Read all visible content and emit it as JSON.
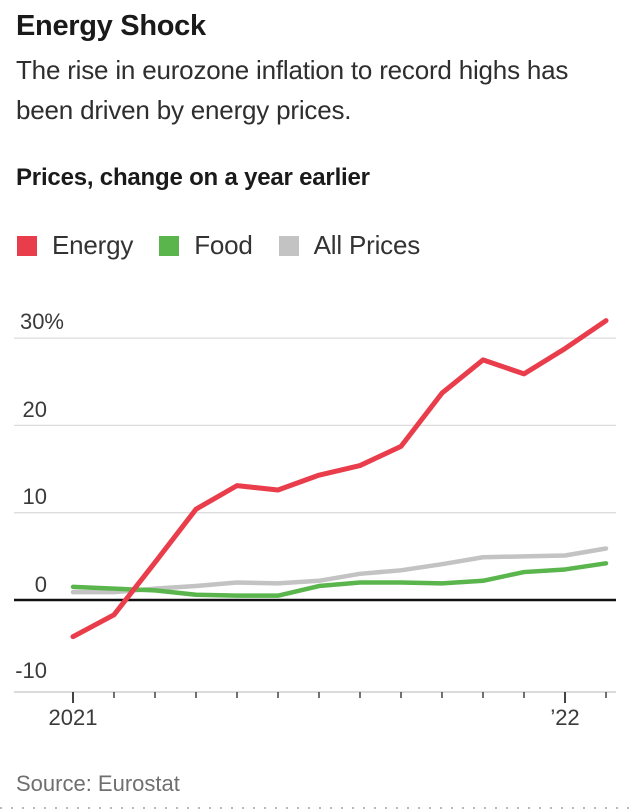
{
  "chart_data": {
    "type": "line",
    "title": "Energy Shock",
    "subtitle": "The rise in eurozone inflation to record highs has been driven by energy prices.",
    "panel_label": "Prices, change on a year earlier",
    "source": "Source: Eurostat",
    "x": [
      "2021-01",
      "2021-02",
      "2021-03",
      "2021-04",
      "2021-05",
      "2021-06",
      "2021-07",
      "2021-08",
      "2021-09",
      "2021-10",
      "2021-11",
      "2021-12",
      "2022-01",
      "2022-02"
    ],
    "series": [
      {
        "name": "Energy",
        "color": "#e93d4c",
        "values": [
          -4.2,
          -1.7,
          4.3,
          10.4,
          13.1,
          12.6,
          14.3,
          15.4,
          17.6,
          23.7,
          27.5,
          25.9,
          28.8,
          32.0
        ]
      },
      {
        "name": "Food",
        "color": "#5ab54d",
        "values": [
          1.5,
          1.3,
          1.1,
          0.6,
          0.5,
          0.5,
          1.6,
          2.0,
          2.0,
          1.9,
          2.2,
          3.2,
          3.5,
          4.2
        ]
      },
      {
        "name": "All Prices",
        "color": "#c3c3c3",
        "values": [
          0.9,
          0.9,
          1.3,
          1.6,
          2.0,
          1.9,
          2.2,
          3.0,
          3.4,
          4.1,
          4.9,
          5.0,
          5.1,
          5.9
        ]
      }
    ],
    "y_ticks": [
      "30%",
      "20",
      "10",
      "0",
      "-10"
    ],
    "y_tick_values": [
      30,
      20,
      10,
      0,
      -10
    ],
    "x_tick_labels": [
      "2021",
      "’22"
    ],
    "ylim": [
      -10.5,
      33.5
    ],
    "unit": "%",
    "grid": "horizontal",
    "legend_position": "top-left",
    "colors": {
      "grid_line": "#dcdcdc",
      "zero_line": "#111111",
      "axis_line": "#cfcfcf",
      "tick_mark": "#444444"
    }
  }
}
